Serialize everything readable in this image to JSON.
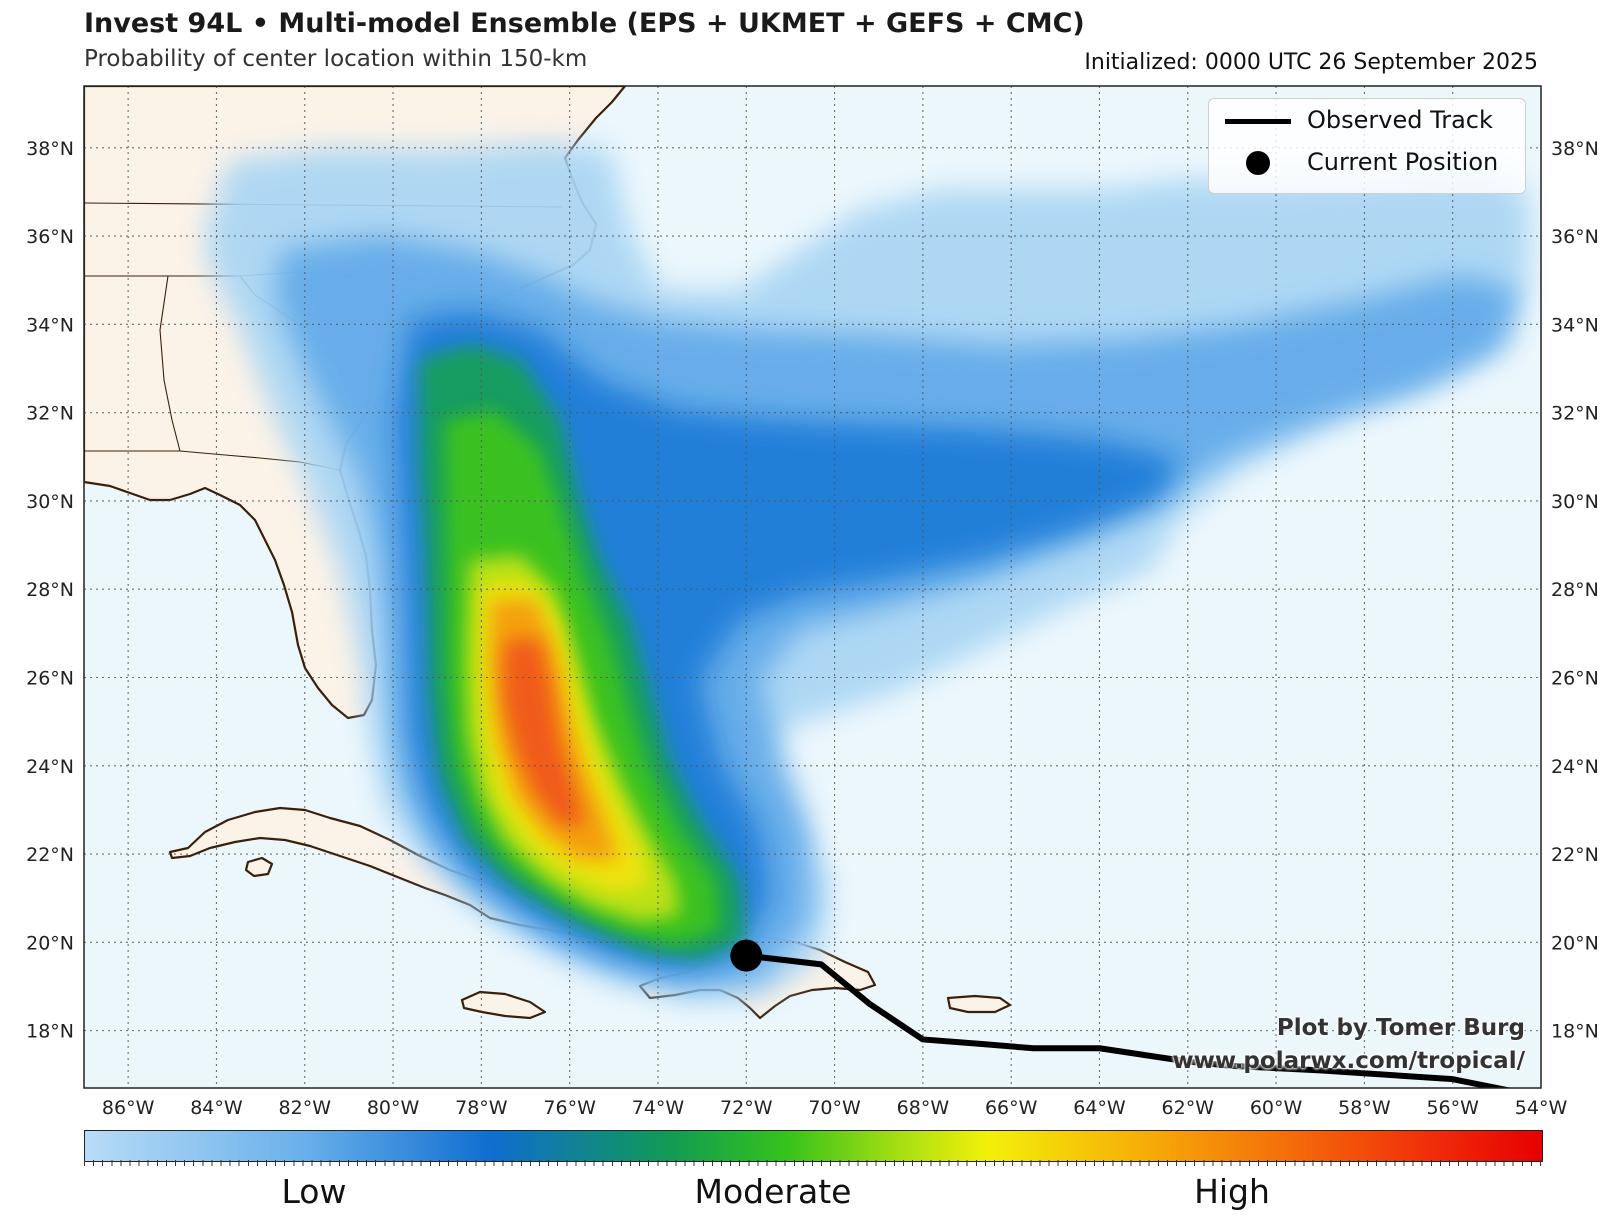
{
  "header": {
    "title": "Invest 94L • Multi-model Ensemble (EPS + UKMET + GEFS + CMC)",
    "subtitle": "Probability of center location within 150-km",
    "initialized": "Initialized: 0000 UTC 26 September 2025"
  },
  "axes": {
    "lon_labels": [
      "86°W",
      "84°W",
      "82°W",
      "80°W",
      "78°W",
      "76°W",
      "74°W",
      "72°W",
      "70°W",
      "68°W",
      "66°W",
      "64°W",
      "62°W",
      "60°W",
      "58°W",
      "56°W",
      "54°W"
    ],
    "lat_labels": [
      "18°N",
      "20°N",
      "22°N",
      "24°N",
      "26°N",
      "28°N",
      "30°N",
      "32°N",
      "34°N",
      "36°N",
      "38°N"
    ],
    "lon_range": [
      -87.0,
      -54.0
    ],
    "lat_range": [
      16.7,
      39.4
    ],
    "grid": true
  },
  "legend": {
    "track_label": "Observed Track",
    "position_label": "Current Position"
  },
  "credits": {
    "author": "Plot by Tomer Burg",
    "url": "www.polarwx.com/tropical/"
  },
  "colorbar": {
    "labels": [
      "Low",
      "Moderate",
      "High"
    ]
  },
  "observed_track": [
    {
      "lon": -54.0,
      "lat": 16.5
    },
    {
      "lon": -56.0,
      "lat": 16.9
    },
    {
      "lon": -59.0,
      "lat": 17.1
    },
    {
      "lon": -61.0,
      "lat": 17.2
    },
    {
      "lon": -62.0,
      "lat": 17.3
    },
    {
      "lon": -64.0,
      "lat": 17.6
    },
    {
      "lon": -65.5,
      "lat": 17.6
    },
    {
      "lon": -66.7,
      "lat": 17.7
    },
    {
      "lon": -68.0,
      "lat": 17.8
    },
    {
      "lon": -69.2,
      "lat": 18.6
    },
    {
      "lon": -70.3,
      "lat": 19.5
    },
    {
      "lon": -72.0,
      "lat": 19.7
    }
  ],
  "current_position": {
    "lon": -72.0,
    "lat": 19.7
  },
  "colors": {
    "ocean": "#ecf7fc",
    "land": "#fcf3e8",
    "coast": "#3a200c",
    "low": "#b8dcf7",
    "moderate": "#34c21c",
    "high": "#e60000"
  }
}
